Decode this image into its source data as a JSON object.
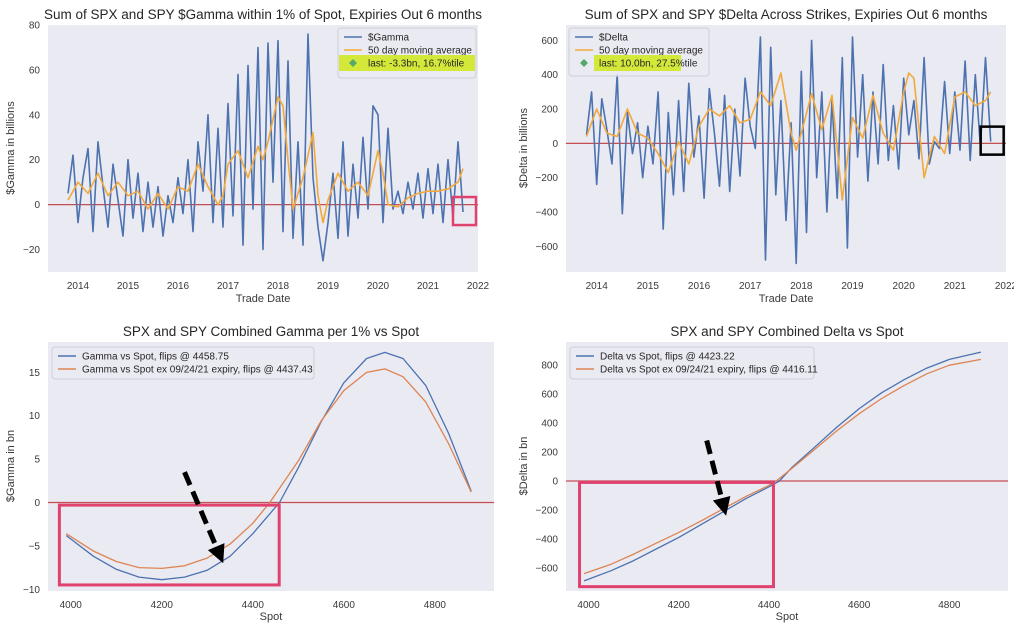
{
  "chart_data": [
    {
      "id": "gamma_ts",
      "type": "line",
      "title": "Sum of SPX and SPY $Gamma within 1% of Spot, Expiries Out 6 months",
      "xlabel": "Trade Date",
      "ylabel": "$Gamma in billions",
      "xlim": [
        2013.4,
        2022.0
      ],
      "ylim": [
        -30,
        80
      ],
      "xticks": [
        2014,
        2015,
        2016,
        2017,
        2018,
        2019,
        2020,
        2021,
        2022
      ],
      "yticks": [
        -20,
        0,
        20,
        40,
        60,
        80
      ],
      "grid": false,
      "legend_position": "top-right",
      "zero_line": 0,
      "series": [
        {
          "name": "$Gamma",
          "color": "#4c72b0",
          "x": [
            2013.8,
            2013.9,
            2014.0,
            2014.1,
            2014.2,
            2014.3,
            2014.4,
            2014.5,
            2014.6,
            2014.7,
            2014.8,
            2014.9,
            2015.0,
            2015.1,
            2015.2,
            2015.3,
            2015.4,
            2015.5,
            2015.6,
            2015.7,
            2015.8,
            2015.9,
            2016.0,
            2016.1,
            2016.2,
            2016.3,
            2016.4,
            2016.5,
            2016.6,
            2016.7,
            2016.8,
            2016.9,
            2017.0,
            2017.1,
            2017.2,
            2017.3,
            2017.4,
            2017.5,
            2017.6,
            2017.7,
            2017.8,
            2017.9,
            2018.0,
            2018.1,
            2018.2,
            2018.3,
            2018.4,
            2018.5,
            2018.6,
            2018.7,
            2018.8,
            2018.9,
            2019.0,
            2019.1,
            2019.2,
            2019.3,
            2019.4,
            2019.5,
            2019.6,
            2019.7,
            2019.8,
            2019.9,
            2020.0,
            2020.1,
            2020.2,
            2020.3,
            2020.4,
            2020.5,
            2020.6,
            2020.7,
            2020.8,
            2020.9,
            2021.0,
            2021.1,
            2021.2,
            2021.3,
            2021.4,
            2021.5,
            2021.6,
            2021.7
          ],
          "values": [
            5,
            22,
            -8,
            12,
            25,
            -12,
            28,
            8,
            -10,
            18,
            2,
            -14,
            20,
            -6,
            14,
            -12,
            10,
            -10,
            8,
            -14,
            4,
            -8,
            12,
            -4,
            20,
            -12,
            28,
            6,
            40,
            -8,
            34,
            -10,
            45,
            -5,
            58,
            -18,
            62,
            -2,
            70,
            -20,
            72,
            10,
            73,
            -12,
            64,
            -15,
            28,
            -18,
            76,
            12,
            -10,
            -25,
            -8,
            14,
            -15,
            28,
            -14,
            18,
            -6,
            30,
            -2,
            44,
            40,
            -8,
            34,
            -2,
            6,
            -4,
            10,
            -2,
            14,
            -6,
            16,
            -4,
            18,
            -8,
            20,
            -6,
            28,
            -3.3
          ]
        },
        {
          "name": "50 day moving average",
          "color": "#f2a93b",
          "x": [
            2013.8,
            2014.0,
            2014.2,
            2014.4,
            2014.6,
            2014.8,
            2015.0,
            2015.2,
            2015.4,
            2015.6,
            2015.8,
            2016.0,
            2016.2,
            2016.4,
            2016.6,
            2016.8,
            2016.9,
            2017.0,
            2017.2,
            2017.4,
            2017.6,
            2017.7,
            2017.8,
            2017.9,
            2018.0,
            2018.1,
            2018.2,
            2018.3,
            2018.5,
            2018.7,
            2018.8,
            2018.9,
            2019.0,
            2019.2,
            2019.4,
            2019.6,
            2019.8,
            2020.0,
            2020.1,
            2020.2,
            2020.4,
            2020.6,
            2020.8,
            2021.0,
            2021.2,
            2021.4,
            2021.6,
            2021.7
          ],
          "values": [
            2,
            10,
            5,
            14,
            4,
            10,
            4,
            6,
            -2,
            5,
            -2,
            8,
            6,
            18,
            8,
            0,
            4,
            18,
            24,
            12,
            26,
            20,
            28,
            38,
            48,
            44,
            20,
            -2,
            12,
            32,
            4,
            -8,
            2,
            14,
            6,
            10,
            4,
            24,
            14,
            0,
            -1,
            3,
            5,
            6,
            6,
            7,
            10,
            16
          ]
        }
      ],
      "annotation": {
        "type": "marker",
        "label": "last: -3.3bn, 16.7%tile",
        "x": 2021.72,
        "y": -3.3,
        "marker_color": "#55a868",
        "highlight_color": "#d4e83a",
        "box_color": "#e0416e"
      }
    },
    {
      "id": "delta_ts",
      "type": "line",
      "title": "Sum of SPX and SPY $Delta Across Strikes, Expiries Out 6 months",
      "xlabel": "Trade Date",
      "ylabel": "$Delta in billions",
      "xlim": [
        2013.4,
        2022.0
      ],
      "ylim": [
        -750,
        690
      ],
      "xticks": [
        2014,
        2015,
        2016,
        2017,
        2018,
        2019,
        2020,
        2021,
        2022
      ],
      "yticks": [
        -600,
        -400,
        -200,
        0,
        200,
        400,
        600
      ],
      "grid": false,
      "legend_position": "top-left",
      "zero_line": 0,
      "series": [
        {
          "name": "$Delta",
          "color": "#4c72b0",
          "x": [
            2013.8,
            2013.9,
            2014.0,
            2014.1,
            2014.2,
            2014.3,
            2014.4,
            2014.5,
            2014.6,
            2014.7,
            2014.8,
            2014.9,
            2015.0,
            2015.1,
            2015.2,
            2015.3,
            2015.4,
            2015.5,
            2015.6,
            2015.7,
            2015.8,
            2015.9,
            2016.0,
            2016.1,
            2016.2,
            2016.3,
            2016.4,
            2016.5,
            2016.6,
            2016.7,
            2016.8,
            2016.9,
            2017.0,
            2017.1,
            2017.2,
            2017.3,
            2017.4,
            2017.5,
            2017.6,
            2017.7,
            2017.8,
            2017.9,
            2018.0,
            2018.1,
            2018.2,
            2018.3,
            2018.4,
            2018.5,
            2018.6,
            2018.7,
            2018.8,
            2018.9,
            2019.0,
            2019.1,
            2019.2,
            2019.3,
            2019.4,
            2019.5,
            2019.6,
            2019.7,
            2019.8,
            2019.9,
            2020.0,
            2020.1,
            2020.2,
            2020.3,
            2020.4,
            2020.5,
            2020.6,
            2020.7,
            2020.8,
            2020.9,
            2021.0,
            2021.1,
            2021.2,
            2021.3,
            2021.4,
            2021.5,
            2021.6,
            2021.7
          ],
          "values": [
            50,
            300,
            -240,
            260,
            80,
            -120,
            400,
            -410,
            180,
            -60,
            120,
            -200,
            100,
            -120,
            300,
            -500,
            180,
            -300,
            250,
            -280,
            350,
            -80,
            160,
            -320,
            320,
            60,
            -250,
            280,
            -280,
            200,
            -190,
            380,
            100,
            -30,
            620,
            -680,
            560,
            -300,
            250,
            -450,
            120,
            -700,
            420,
            -520,
            600,
            -200,
            300,
            -400,
            250,
            -320,
            500,
            -610,
            620,
            -80,
            400,
            -220,
            300,
            -120,
            460,
            -100,
            220,
            -150,
            380,
            50,
            250,
            -90,
            500,
            -120,
            10,
            -30,
            360,
            -60,
            300,
            -40,
            480,
            -100,
            400,
            -20,
            500,
            10
          ]
        },
        {
          "name": "50 day moving average",
          "color": "#f2a93b",
          "x": [
            2013.8,
            2014.0,
            2014.2,
            2014.4,
            2014.6,
            2014.8,
            2015.0,
            2015.2,
            2015.4,
            2015.6,
            2015.8,
            2016.0,
            2016.2,
            2016.4,
            2016.6,
            2016.8,
            2017.0,
            2017.2,
            2017.4,
            2017.6,
            2017.8,
            2017.9,
            2018.0,
            2018.2,
            2018.4,
            2018.6,
            2018.8,
            2019.0,
            2019.2,
            2019.4,
            2019.6,
            2019.8,
            2020.0,
            2020.1,
            2020.2,
            2020.4,
            2020.6,
            2020.8,
            2021.0,
            2021.2,
            2021.4,
            2021.6,
            2021.7
          ],
          "values": [
            40,
            200,
            60,
            40,
            200,
            60,
            30,
            -60,
            -170,
            10,
            -120,
            100,
            200,
            160,
            220,
            120,
            140,
            300,
            220,
            410,
            60,
            -40,
            60,
            290,
            80,
            280,
            -330,
            150,
            30,
            280,
            60,
            -40,
            300,
            410,
            380,
            -200,
            40,
            -60,
            270,
            300,
            220,
            250,
            300
          ]
        }
      ],
      "annotation": {
        "type": "marker",
        "label": "last: 10.0bn, 27.5%tile",
        "x": 2021.72,
        "y": 10.0,
        "marker_color": "#55a868",
        "highlight_color": "#d4e83a",
        "box_color": "#000000"
      }
    },
    {
      "id": "gamma_spot",
      "type": "line",
      "title": "SPX and SPY Combined Gamma per 1% vs Spot",
      "xlabel": "Spot",
      "ylabel": "$Gamma in bn",
      "xlim": [
        3950,
        4930
      ],
      "ylim": [
        -10.2,
        18.5
      ],
      "xticks": [
        4000,
        4200,
        4400,
        4600,
        4800
      ],
      "yticks": [
        -10,
        -5,
        0,
        5,
        10,
        15
      ],
      "grid": false,
      "legend_position": "top-left",
      "zero_line": 0,
      "series": [
        {
          "name": "Gamma vs Spot, flips @ 4458.75",
          "color": "#4c72b0",
          "x": [
            3990,
            4050,
            4100,
            4150,
            4200,
            4250,
            4300,
            4350,
            4400,
            4458.75,
            4500,
            4550,
            4600,
            4650,
            4690,
            4730,
            4780,
            4830,
            4880
          ],
          "values": [
            -3.8,
            -6.2,
            -7.7,
            -8.6,
            -8.9,
            -8.6,
            -7.8,
            -6.2,
            -3.6,
            0,
            4.0,
            9.3,
            13.8,
            16.6,
            17.3,
            16.6,
            13.5,
            8.0,
            1.3
          ]
        },
        {
          "name": "Gamma vs Spot ex 09/24/21 expiry, flips @ 4437.43",
          "color": "#dd8452",
          "x": [
            3990,
            4050,
            4100,
            4150,
            4200,
            4250,
            4300,
            4350,
            4400,
            4437.43,
            4500,
            4550,
            4600,
            4650,
            4690,
            4730,
            4780,
            4830,
            4880
          ],
          "values": [
            -3.6,
            -5.6,
            -6.8,
            -7.5,
            -7.6,
            -7.3,
            -6.4,
            -4.8,
            -2.4,
            0,
            4.8,
            9.4,
            12.9,
            15.0,
            15.4,
            14.5,
            11.6,
            6.8,
            1.2
          ]
        }
      ],
      "annotation": {
        "type": "box-and-arrow",
        "box_x": [
          3975,
          4458
        ],
        "box_y": [
          -9.5,
          -0.3
        ],
        "box_color": "#e0416e",
        "arrow_from": [
          4250,
          3.5
        ],
        "arrow_to": [
          4335,
          -7.0
        ],
        "arrow_color": "#000000"
      }
    },
    {
      "id": "delta_spot",
      "type": "line",
      "title": "SPX and SPY Combined Delta vs Spot",
      "xlabel": "Spot",
      "ylabel": "$Delta in bn",
      "xlim": [
        3950,
        4930
      ],
      "ylim": [
        -760,
        960
      ],
      "xticks": [
        4000,
        4200,
        4400,
        4600,
        4800
      ],
      "yticks": [
        -600,
        -400,
        -200,
        0,
        200,
        400,
        600,
        800
      ],
      "grid": false,
      "legend_position": "top-left",
      "zero_line": 0,
      "series": [
        {
          "name": "Delta vs Spot, flips @ 4423.22",
          "color": "#4c72b0",
          "x": [
            3990,
            4050,
            4100,
            4150,
            4200,
            4250,
            4300,
            4350,
            4400,
            4423.22,
            4450,
            4500,
            4550,
            4600,
            4650,
            4700,
            4750,
            4800,
            4870
          ],
          "values": [
            -690,
            -620,
            -550,
            -470,
            -390,
            -300,
            -210,
            -120,
            -40,
            0,
            90,
            230,
            370,
            500,
            610,
            700,
            780,
            840,
            890
          ]
        },
        {
          "name": "Delta vs Spot ex 09/24/21 expiry, flips @ 4416.11",
          "color": "#dd8452",
          "x": [
            3990,
            4050,
            4100,
            4150,
            4200,
            4250,
            4300,
            4350,
            4400,
            4416.11,
            4450,
            4500,
            4550,
            4600,
            4650,
            4700,
            4750,
            4800,
            4870
          ],
          "values": [
            -640,
            -575,
            -505,
            -430,
            -355,
            -275,
            -190,
            -105,
            -30,
            0,
            85,
            215,
            345,
            465,
            570,
            660,
            740,
            800,
            840
          ]
        }
      ],
      "annotation": {
        "type": "box-and-arrow",
        "box_x": [
          3980,
          4410
        ],
        "box_y": [
          -730,
          -10
        ],
        "box_color": "#e0416e",
        "arrow_from": [
          4262,
          280
        ],
        "arrow_to": [
          4305,
          -240
        ],
        "arrow_color": "#000000"
      }
    }
  ]
}
